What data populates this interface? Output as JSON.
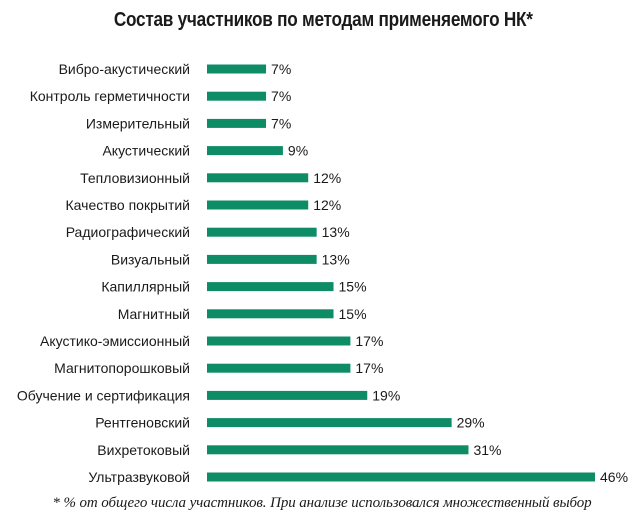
{
  "chart_data": {
    "type": "bar",
    "orientation": "horizontal",
    "title": "Состав участников по методам применяемого НК*",
    "footnote": "* % от общего числа участников. При анализе использовался множественный выбор",
    "categories": [
      "Вибро-акустический",
      "Контроль герметичности",
      "Измерительный",
      "Акустический",
      "Тепловизионный",
      "Качество покрытий",
      "Радиографический",
      "Визуальный",
      "Капиллярный",
      "Магнитный",
      "Акустико-эмиссионный",
      "Магнитопорошковый",
      "Обучение и сертификация",
      "Рентгеновский",
      "Вихретоковый",
      "Ультразвуковой"
    ],
    "values": [
      7,
      7,
      7,
      9,
      12,
      12,
      13,
      13,
      15,
      15,
      17,
      17,
      19,
      29,
      31,
      46
    ],
    "value_labels": [
      "7%",
      "7%",
      "7%",
      "9%",
      "12%",
      "12%",
      "13%",
      "13%",
      "15%",
      "15%",
      "17%",
      "17%",
      "19%",
      "29%",
      "31%",
      "46%"
    ],
    "unit": "%",
    "xlim": [
      0,
      46
    ],
    "grid": false,
    "legend": "none",
    "bar_color": "#0e8c66"
  }
}
